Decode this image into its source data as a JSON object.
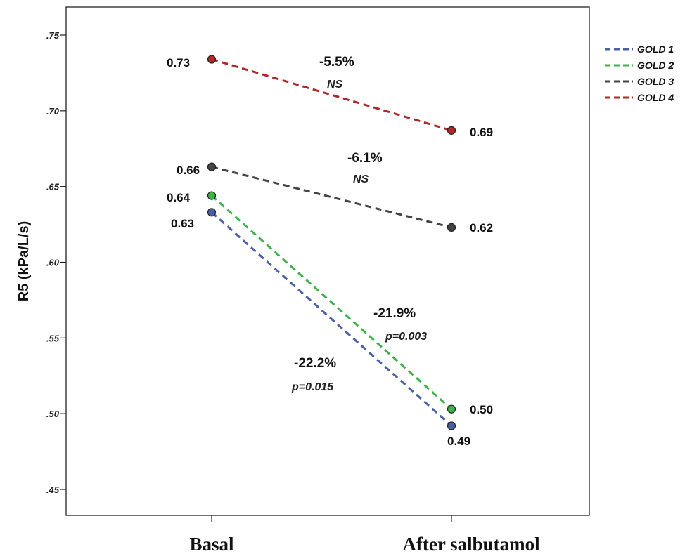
{
  "chart_data": {
    "type": "line",
    "ylabel": "R5 (kPa/L/s)",
    "xlabel": "",
    "categories": [
      "Basal",
      "After salbutamol"
    ],
    "ylim": [
      0.445,
      0.76
    ],
    "yticks": [
      0.45,
      0.5,
      0.55,
      0.6,
      0.65,
      0.7,
      0.75
    ],
    "ytick_labels": [
      ".45",
      ".50",
      ".55",
      ".60",
      ".65",
      ".70",
      ".75"
    ],
    "legend_position": "top-right",
    "grid": false,
    "series": [
      {
        "name": "GOLD 1",
        "color": "#4a5fa8",
        "values": [
          0.633,
          0.492
        ],
        "labels": [
          "0.63",
          "0.49"
        ]
      },
      {
        "name": "GOLD 2",
        "color": "#3cb44a",
        "values": [
          0.644,
          0.503
        ],
        "labels": [
          "0.64",
          "0.50"
        ]
      },
      {
        "name": "GOLD 3",
        "color": "#444444",
        "values": [
          0.663,
          0.623
        ],
        "labels": [
          "0.66",
          "0.62"
        ]
      },
      {
        "name": "GOLD 4",
        "color": "#b02828",
        "values": [
          0.734,
          0.687
        ],
        "labels": [
          "0.73",
          "0.69"
        ]
      }
    ],
    "annotations": [
      {
        "series": "GOLD 4",
        "change": "-5.5%",
        "significance": "NS"
      },
      {
        "series": "GOLD 3",
        "change": "-6.1%",
        "significance": "NS"
      },
      {
        "series": "GOLD 2",
        "change": "-21.9%",
        "significance": "p=0.003"
      },
      {
        "series": "GOLD 1",
        "change": "-22.2%",
        "significance": "p=0.015"
      }
    ]
  }
}
